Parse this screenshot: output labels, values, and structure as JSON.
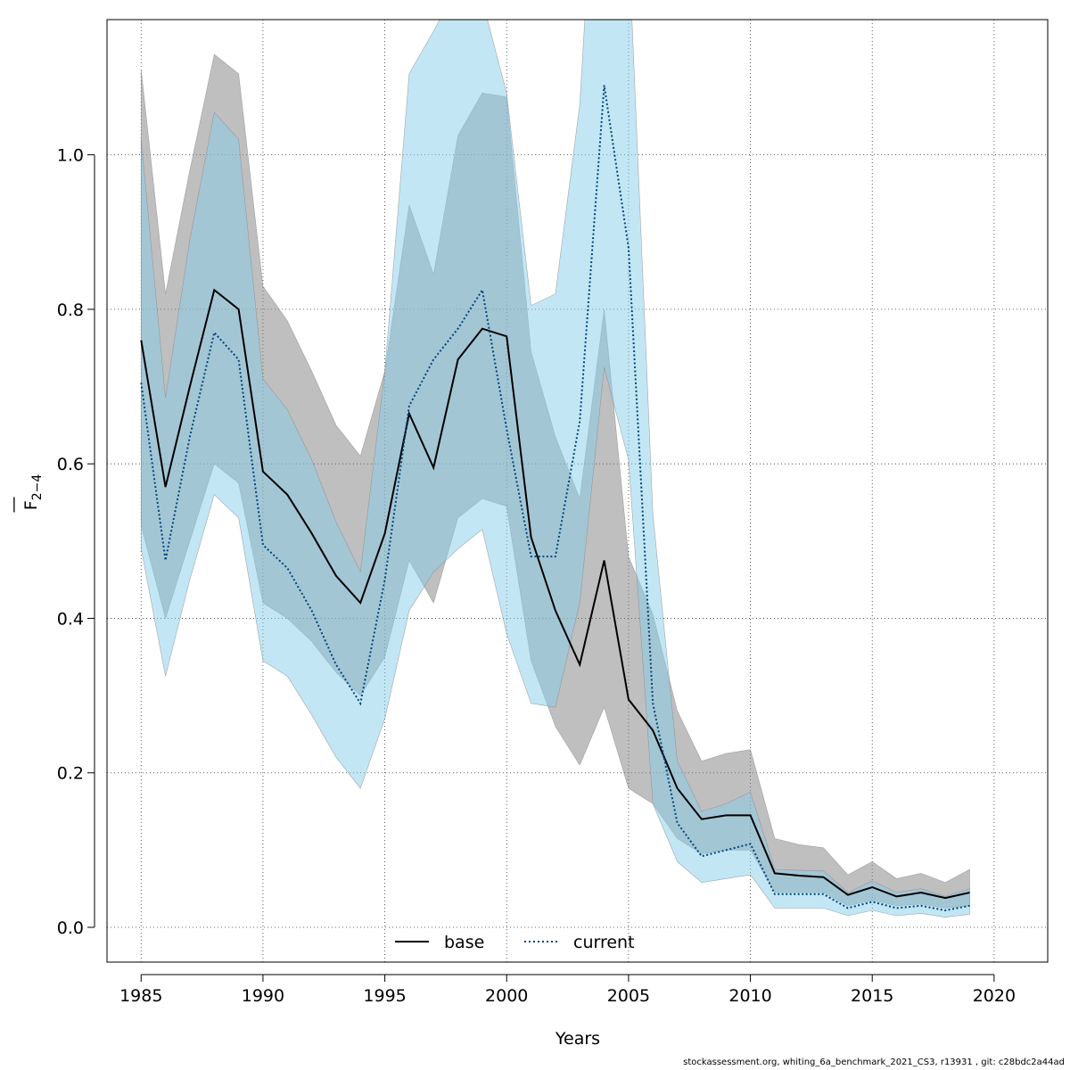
{
  "chart_data": {
    "type": "area",
    "xlabel": "Years",
    "ylabel": "F",
    "ylabel_bar": "—",
    "ylabel_sub": "2−4",
    "xlim": [
      1983.6,
      2022.2
    ],
    "ylim": [
      -0.045,
      1.175
    ],
    "x_ticks": [
      1985,
      1990,
      1995,
      2000,
      2005,
      2010,
      2015,
      2020
    ],
    "y_ticks": [
      0.0,
      0.2,
      0.4,
      0.6,
      0.8,
      1.0
    ],
    "y_tick_labels": [
      "0.0",
      "0.2",
      "0.4",
      "0.6",
      "0.8",
      "1.0"
    ],
    "grid": true,
    "legend_position": "bottom-center",
    "x": [
      1985,
      1986,
      1987,
      1988,
      1989,
      1990,
      1991,
      1992,
      1993,
      1994,
      1995,
      1996,
      1997,
      1998,
      1999,
      2000,
      2001,
      2002,
      2003,
      2004,
      2005,
      2006,
      2007,
      2008,
      2009,
      2010,
      2011,
      2012,
      2013,
      2014,
      2015,
      2016,
      2017,
      2018,
      2019
    ],
    "series": [
      {
        "name": "base",
        "line_style": "solid",
        "line_color": "#000000",
        "band_color": "#7f7f7f",
        "values": [
          0.76,
          0.57,
          0.7,
          0.825,
          0.8,
          0.59,
          0.56,
          0.51,
          0.455,
          0.42,
          0.51,
          0.665,
          0.595,
          0.735,
          0.775,
          0.765,
          0.505,
          0.41,
          0.34,
          0.475,
          0.295,
          0.255,
          0.18,
          0.14,
          0.145,
          0.145,
          0.07,
          0.067,
          0.065,
          0.042,
          0.052,
          0.04,
          0.045,
          0.038,
          0.045
        ],
        "lower": [
          0.52,
          0.4,
          0.5,
          0.6,
          0.575,
          0.42,
          0.4,
          0.37,
          0.33,
          0.3,
          0.35,
          0.475,
          0.42,
          0.53,
          0.555,
          0.545,
          0.345,
          0.26,
          0.21,
          0.285,
          0.18,
          0.16,
          0.115,
          0.095,
          0.1,
          0.1,
          0.045,
          0.045,
          0.045,
          0.028,
          0.035,
          0.028,
          0.03,
          0.025,
          0.028
        ],
        "upper": [
          1.11,
          0.82,
          0.98,
          1.13,
          1.105,
          0.83,
          0.785,
          0.72,
          0.65,
          0.61,
          0.72,
          0.935,
          0.845,
          1.025,
          1.08,
          1.075,
          0.745,
          0.635,
          0.555,
          0.8,
          0.48,
          0.405,
          0.28,
          0.215,
          0.225,
          0.23,
          0.115,
          0.107,
          0.103,
          0.068,
          0.085,
          0.063,
          0.07,
          0.058,
          0.075
        ]
      },
      {
        "name": "current",
        "line_style": "dotted",
        "line_color": "#00457a",
        "band_color": "#87ceeb",
        "values": [
          0.705,
          0.475,
          0.635,
          0.77,
          0.735,
          0.495,
          0.465,
          0.41,
          0.34,
          0.29,
          0.45,
          0.675,
          0.735,
          0.775,
          0.825,
          0.645,
          0.48,
          0.48,
          0.655,
          1.09,
          0.88,
          0.29,
          0.135,
          0.092,
          0.1,
          0.108,
          0.043,
          0.043,
          0.043,
          0.025,
          0.033,
          0.025,
          0.028,
          0.022,
          0.028
        ],
        "lower": [
          0.49,
          0.325,
          0.45,
          0.56,
          0.53,
          0.345,
          0.325,
          0.275,
          0.22,
          0.18,
          0.27,
          0.41,
          0.46,
          0.49,
          0.515,
          0.38,
          0.29,
          0.285,
          0.42,
          0.725,
          0.605,
          0.16,
          0.085,
          0.058,
          0.063,
          0.068,
          0.025,
          0.025,
          0.025,
          0.015,
          0.022,
          0.015,
          0.018,
          0.013,
          0.017
        ],
        "upper": [
          1.02,
          0.685,
          0.89,
          1.055,
          1.02,
          0.71,
          0.67,
          0.605,
          0.525,
          0.46,
          0.72,
          1.105,
          1.16,
          1.22,
          1.2,
          1.08,
          0.805,
          0.82,
          1.065,
          1.6,
          1.28,
          0.535,
          0.215,
          0.15,
          0.16,
          0.175,
          0.075,
          0.074,
          0.073,
          0.045,
          0.06,
          0.045,
          0.05,
          0.04,
          0.05
        ]
      }
    ]
  },
  "footnote": "stockassessment.org, whiting_6a_benchmark_2021_CS3, r13931 , git: c28bdc2a44ad"
}
